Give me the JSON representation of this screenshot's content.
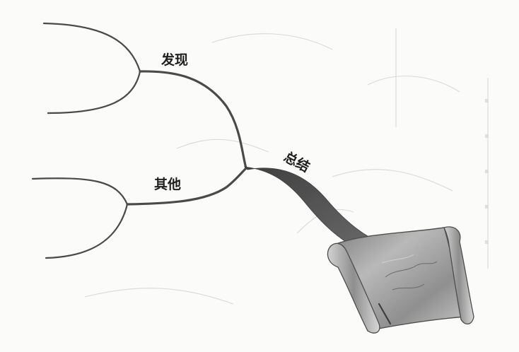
{
  "diagram": {
    "branches": {
      "discover": {
        "label": "发现"
      },
      "other": {
        "label": "其他"
      },
      "summary": {
        "label": "总结"
      }
    },
    "colors": {
      "branch": "#4a4a4a",
      "scroll_dark": "#555555",
      "scroll_light": "#c8c8c8",
      "background": "#fbfbfa"
    },
    "icons": [
      "scroll-icon"
    ]
  }
}
